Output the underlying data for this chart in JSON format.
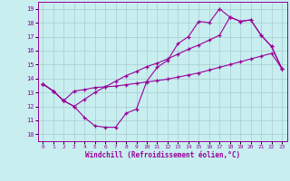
{
  "xlabel": "Windchill (Refroidissement éolien,°C)",
  "bg_color": "#c8eef0",
  "line_color": "#990099",
  "grid_color": "#a8ccd0",
  "xlim": [
    -0.5,
    23.5
  ],
  "ylim": [
    9.5,
    19.5
  ],
  "xticks": [
    0,
    1,
    2,
    3,
    4,
    5,
    6,
    7,
    8,
    9,
    10,
    11,
    12,
    13,
    14,
    15,
    16,
    17,
    18,
    19,
    20,
    21,
    22,
    23
  ],
  "yticks": [
    10,
    11,
    12,
    13,
    14,
    15,
    16,
    17,
    18,
    19
  ],
  "curve1_y": [
    13.6,
    13.1,
    12.4,
    12.0,
    11.2,
    10.6,
    10.5,
    10.5,
    11.5,
    11.8,
    13.8,
    14.8,
    15.3,
    16.5,
    17.0,
    18.1,
    18.0,
    19.0,
    18.4,
    18.1,
    18.2,
    17.1,
    16.3,
    14.7
  ],
  "curve2_y": [
    13.6,
    13.1,
    12.4,
    13.1,
    13.2,
    13.35,
    13.4,
    13.45,
    13.55,
    13.65,
    13.75,
    13.85,
    13.95,
    14.1,
    14.25,
    14.4,
    14.6,
    14.8,
    15.0,
    15.2,
    15.4,
    15.6,
    15.8,
    14.7
  ],
  "curve3_y": [
    13.6,
    13.1,
    12.4,
    12.0,
    12.5,
    13.0,
    13.4,
    13.8,
    14.2,
    14.5,
    14.85,
    15.1,
    15.4,
    15.75,
    16.1,
    16.4,
    16.75,
    17.1,
    18.4,
    18.1,
    18.2,
    17.1,
    16.3,
    14.7
  ]
}
